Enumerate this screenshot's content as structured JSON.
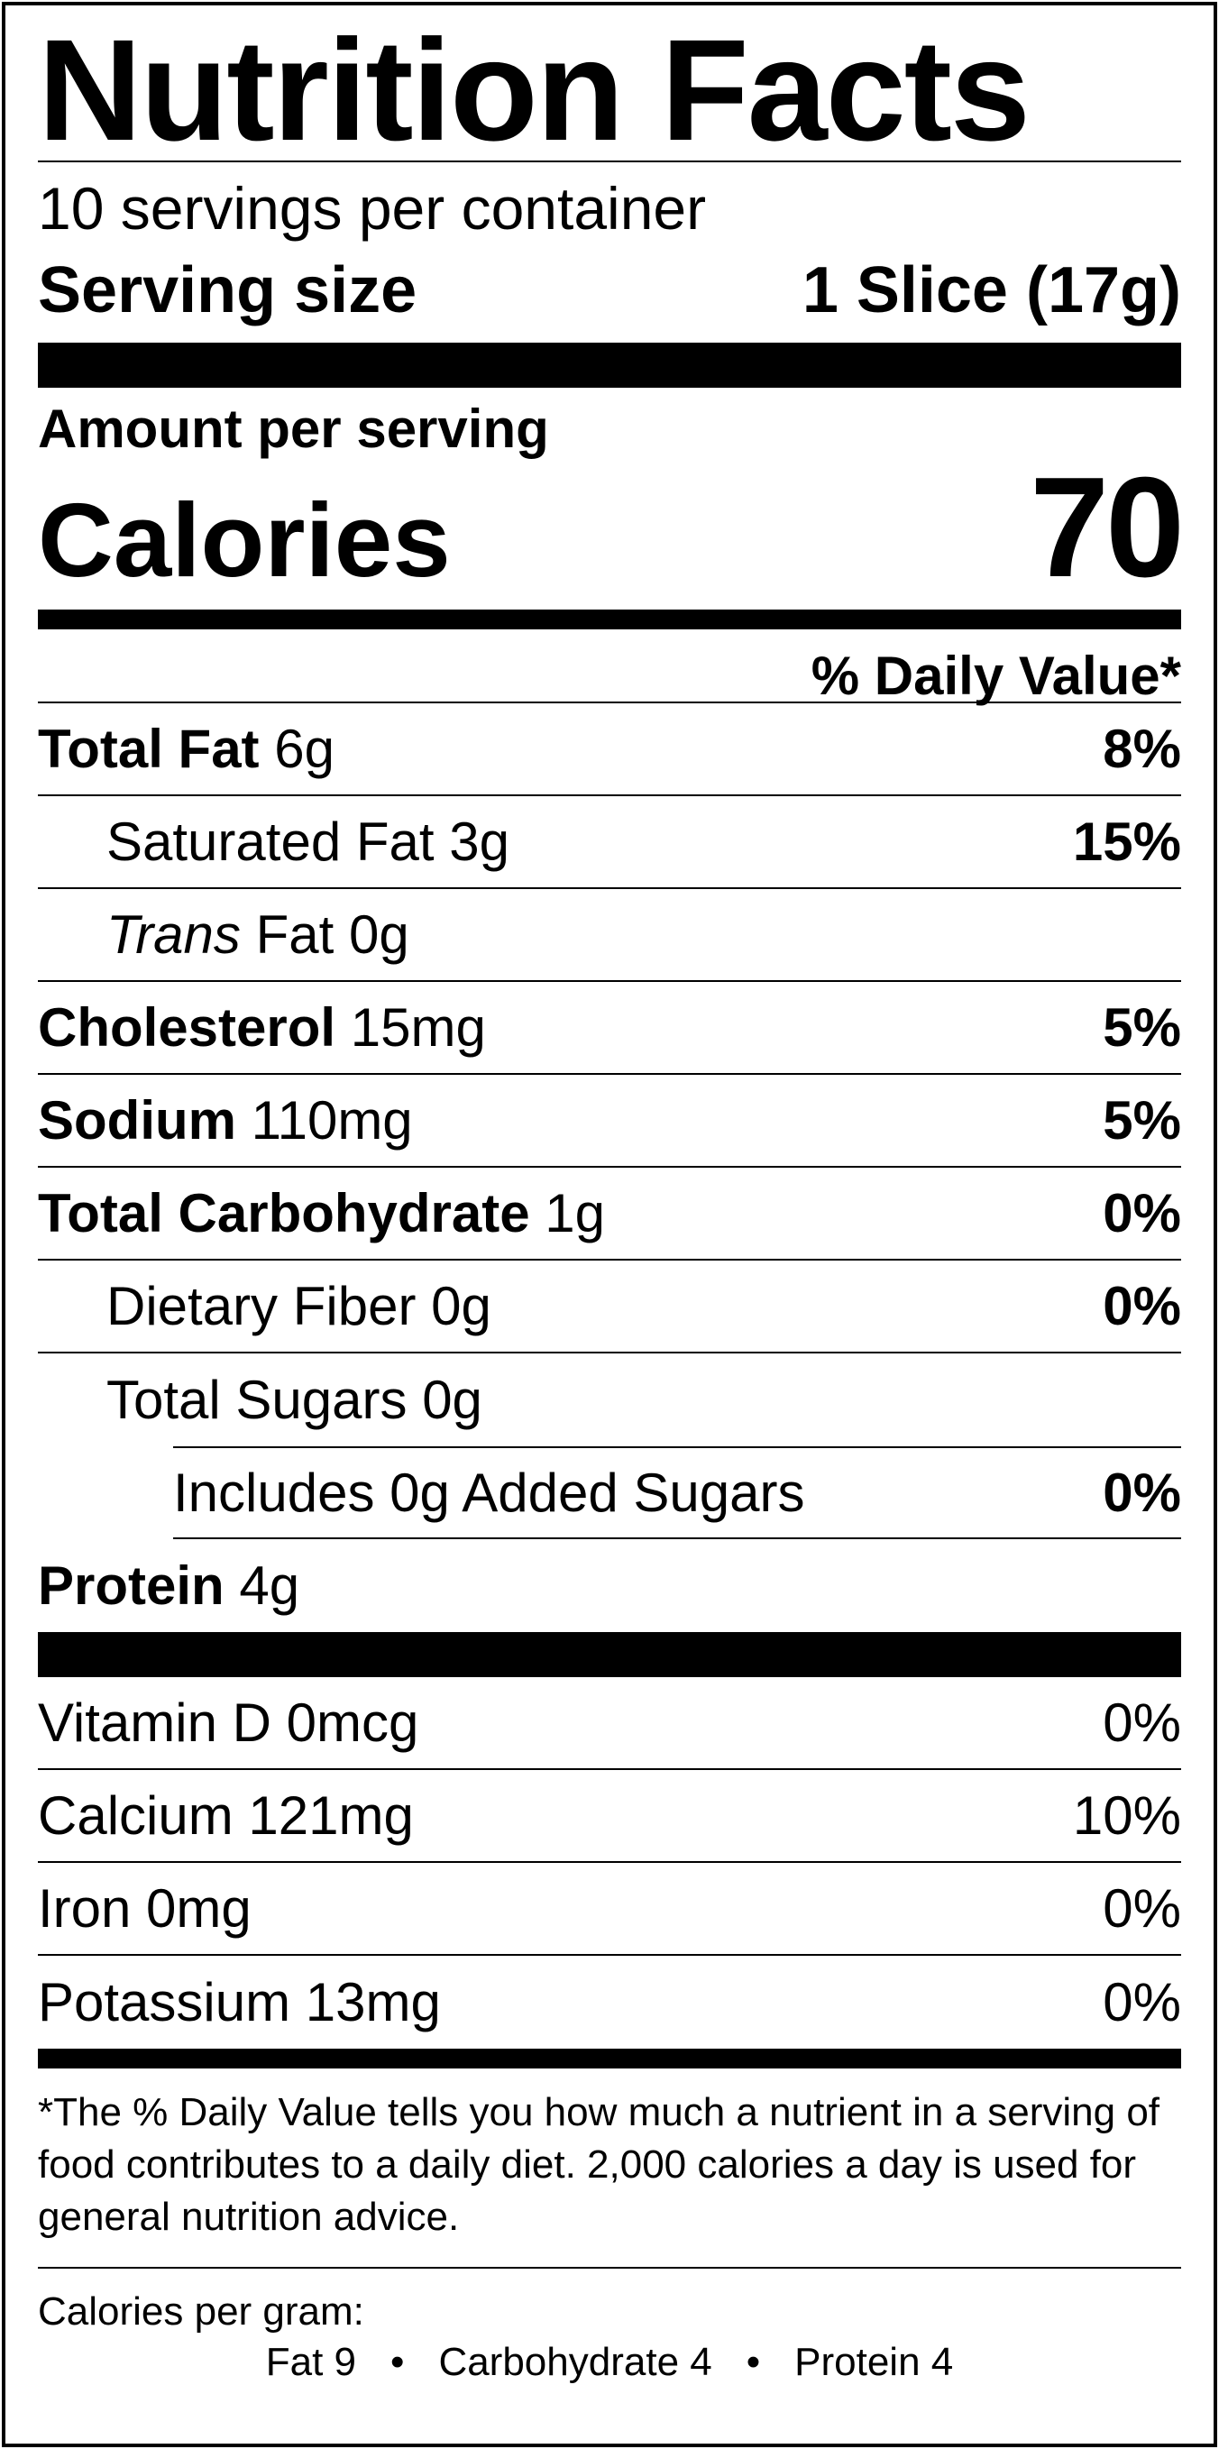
{
  "title": "Nutrition Facts",
  "servings_per_container": "10 servings per container",
  "serving_size_label": "Serving size",
  "serving_size_value": "1 Slice (17g)",
  "amount_per_serving": "Amount per serving",
  "calories_label": "Calories",
  "calories_value": "70",
  "daily_value_header": "% Daily Value*",
  "nutrients": [
    {
      "name": "Total Fat",
      "amount": "6g",
      "dv": "8%"
    },
    {
      "name": "Saturated Fat",
      "amount": "3g",
      "dv": "15%"
    },
    {
      "name_italic": "Trans",
      "name": "Fat",
      "amount": "0g"
    },
    {
      "name": "Cholesterol",
      "amount": "15mg",
      "dv": "5%"
    },
    {
      "name": "Sodium",
      "amount": "110mg",
      "dv": "5%"
    },
    {
      "name": "Total Carbohydrate",
      "amount": "1g",
      "dv": "0%"
    },
    {
      "name": "Dietary Fiber",
      "amount": "0g",
      "dv": "0%"
    },
    {
      "name": "Total Sugars",
      "amount": "0g"
    },
    {
      "text": "Includes 0g Added Sugars",
      "dv": "0%"
    },
    {
      "name": "Protein",
      "amount": "4g"
    }
  ],
  "vitamins": [
    {
      "text": "Vitamin D 0mcg",
      "dv": "0%"
    },
    {
      "text": "Calcium 121mg",
      "dv": "10%"
    },
    {
      "text": "Iron 0mg",
      "dv": "0%"
    },
    {
      "text": "Potassium 13mg",
      "dv": "0%"
    }
  ],
  "footnote": "*The % Daily Value tells you how much a nutrient in a serving of food contributes to a daily diet. 2,000 calories a day is used for general nutrition advice.",
  "calories_per_gram": {
    "title": "Calories per gram:",
    "fat": "Fat 9",
    "carbohydrate": "Carbohydrate 4",
    "protein": "Protein 4",
    "separator": "•"
  }
}
